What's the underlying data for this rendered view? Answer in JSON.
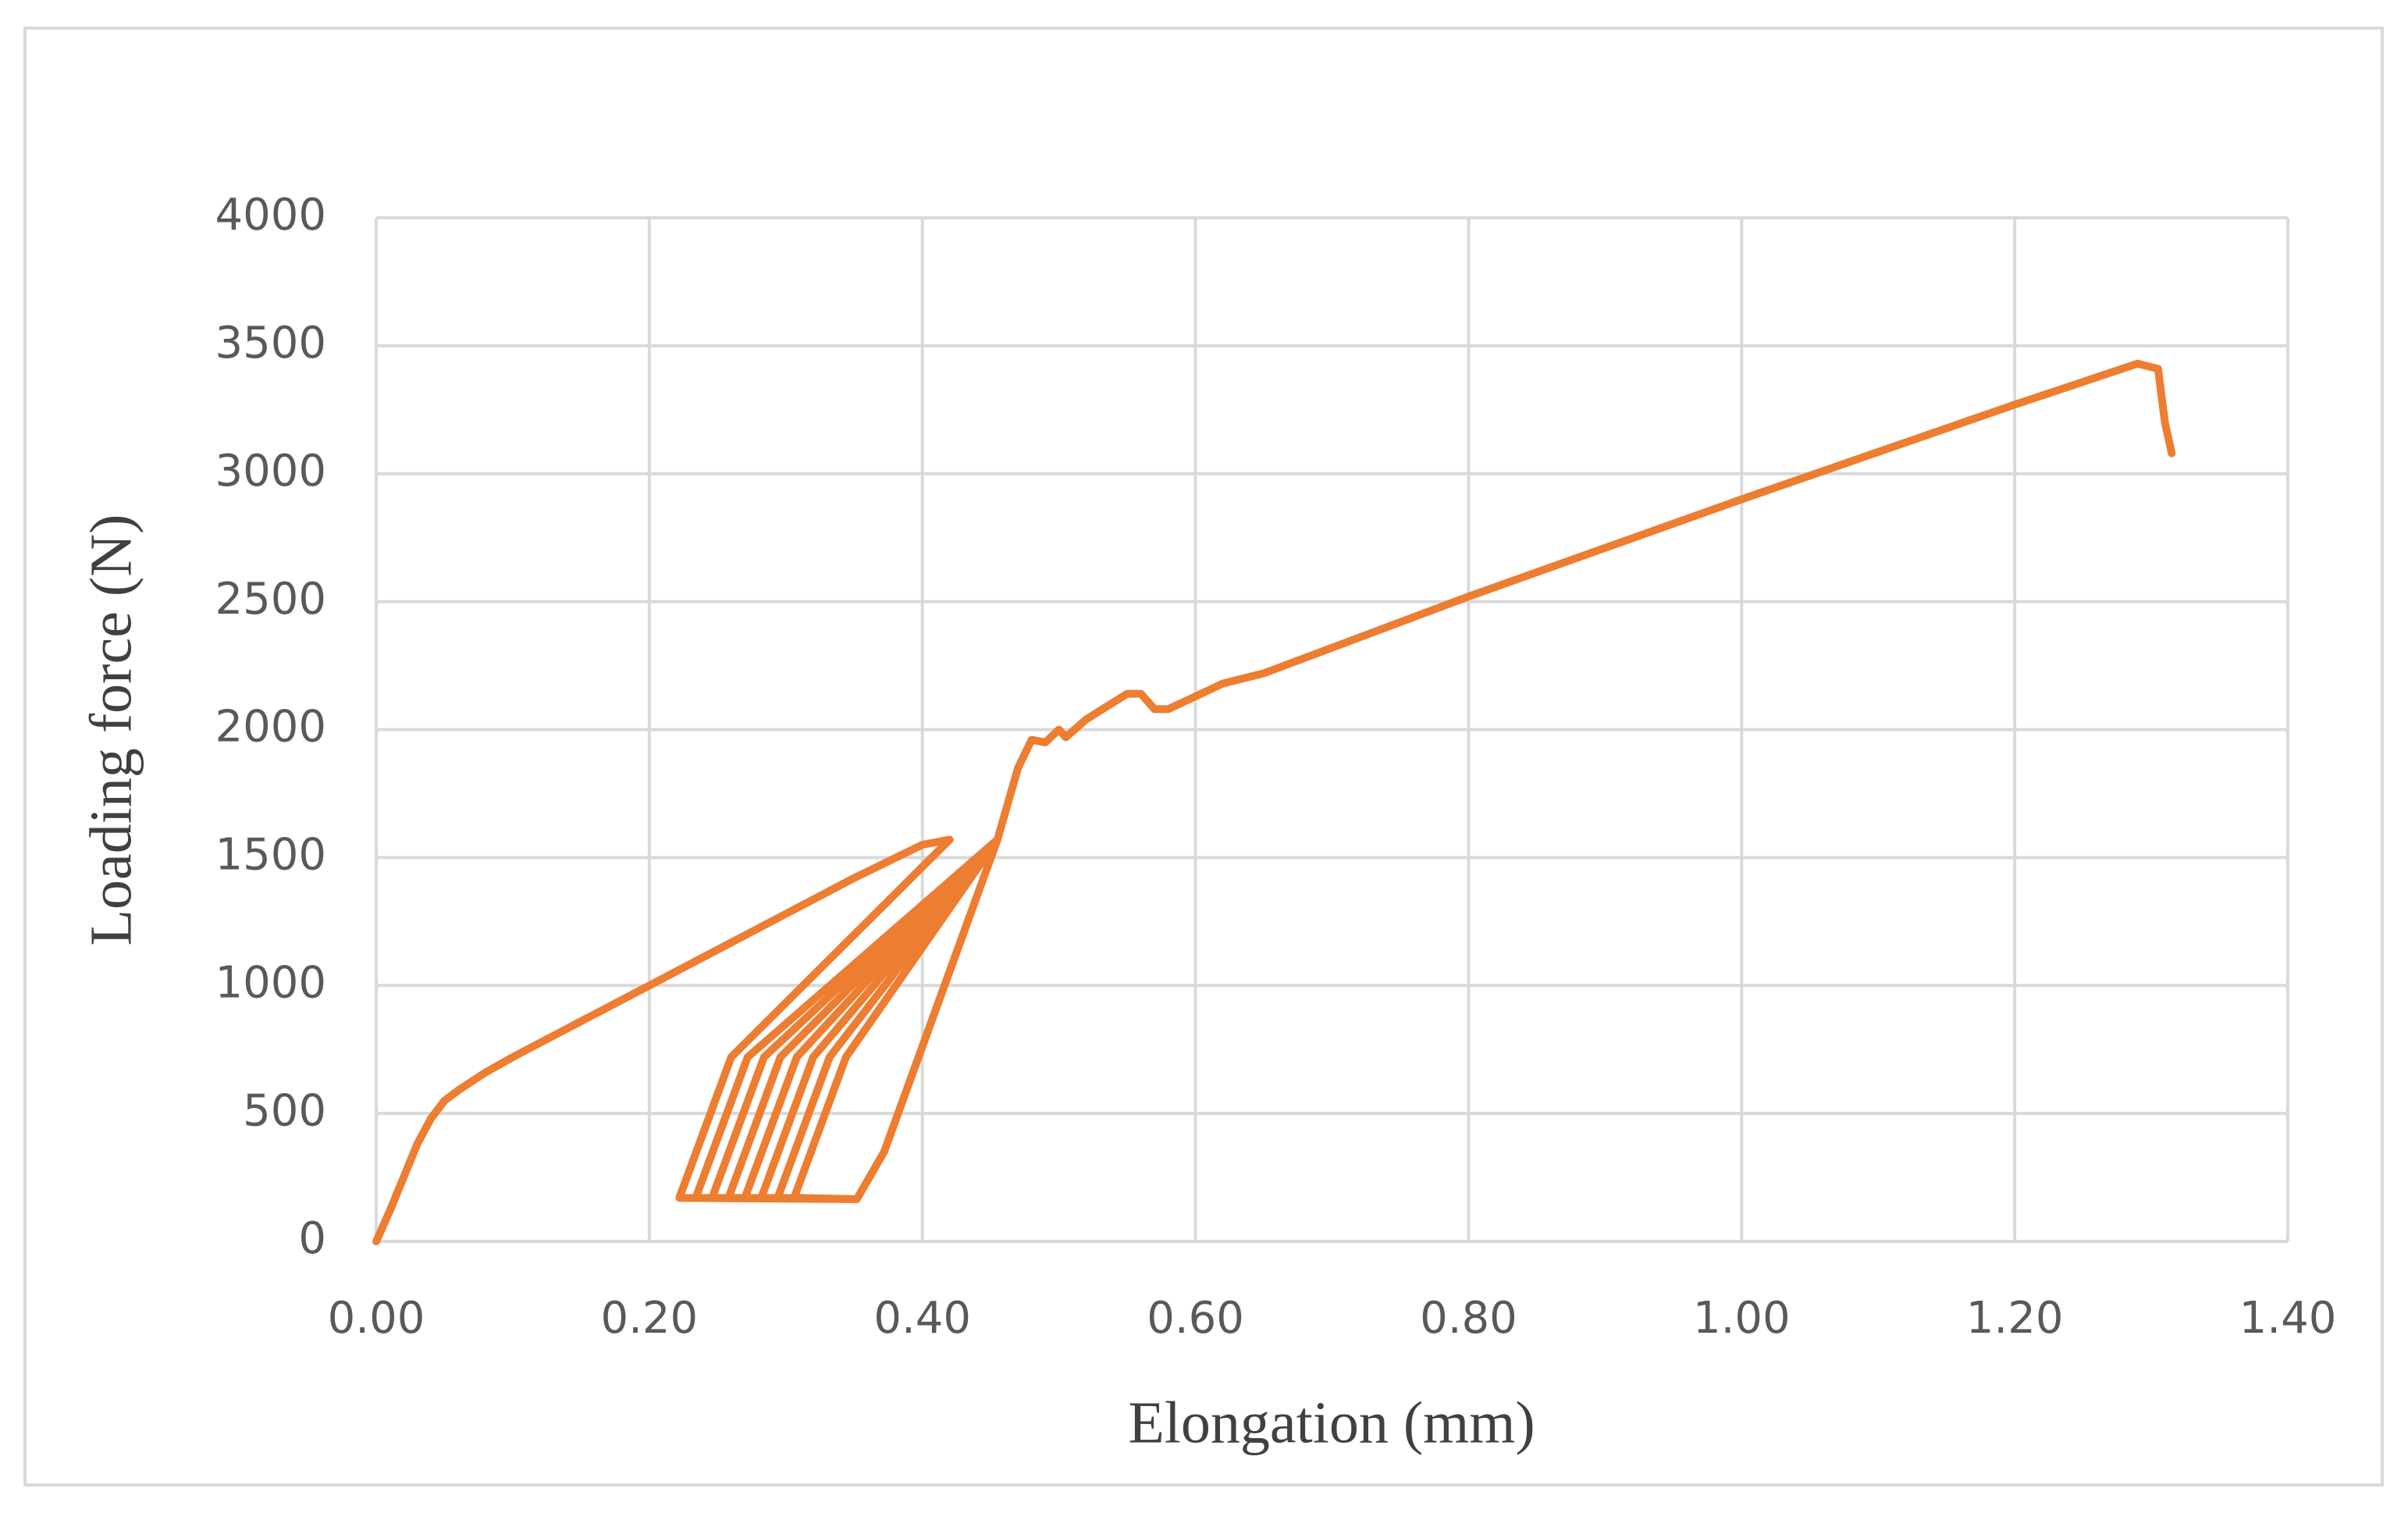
{
  "chart_data": {
    "type": "line",
    "xlabel": "Elongation (mm)",
    "ylabel": "Loading force (N)",
    "color": "#ed7d31",
    "grid": true,
    "xlim": [
      0,
      1.4
    ],
    "xticks": [
      {
        "value": 0,
        "label": "0.00"
      },
      {
        "value": 0.2,
        "label": "0.20"
      },
      {
        "value": 0.4,
        "label": "0.40"
      },
      {
        "value": 0.6,
        "label": "0.60"
      },
      {
        "value": 0.8,
        "label": "0.80"
      },
      {
        "value": 1.0,
        "label": "1.00"
      },
      {
        "value": 1.2,
        "label": "1.20"
      },
      {
        "value": 1.4,
        "label": "1.40"
      }
    ],
    "ylim": [
      0,
      4000
    ],
    "yticks": [
      0,
      500,
      1000,
      1500,
      2000,
      2500,
      3000,
      3500,
      4000
    ],
    "x": [
      0,
      0.01,
      0.02,
      0.03,
      0.04,
      0.05,
      0.06,
      0.08,
      0.1,
      0.15,
      0.2,
      0.25,
      0.3,
      0.35,
      0.4,
      0.42,
      0.26,
      0.222,
      0.352,
      0.372,
      0.455,
      0.272,
      0.234,
      0.352,
      0.372,
      0.455,
      0.284,
      0.246,
      0.352,
      0.372,
      0.455,
      0.296,
      0.258,
      0.352,
      0.372,
      0.455,
      0.308,
      0.27,
      0.352,
      0.372,
      0.455,
      0.32,
      0.282,
      0.352,
      0.372,
      0.455,
      0.332,
      0.294,
      0.352,
      0.372,
      0.455,
      0.344,
      0.306,
      0.352,
      0.372,
      0.455,
      0.47,
      0.48,
      0.49,
      0.5,
      0.505,
      0.52,
      0.55,
      0.56,
      0.57,
      0.58,
      0.62,
      0.65,
      0.8,
      1.0,
      1.2,
      1.29,
      1.305,
      1.31,
      1.315
    ],
    "values": [
      0,
      120,
      250,
      380,
      480,
      550,
      590,
      660,
      720,
      860,
      1000,
      1140,
      1280,
      1420,
      1550,
      1570,
      720,
      170,
      165,
      350,
      1570,
      720,
      170,
      165,
      350,
      1570,
      720,
      170,
      165,
      350,
      1570,
      720,
      170,
      165,
      350,
      1570,
      720,
      170,
      165,
      350,
      1570,
      720,
      170,
      165,
      350,
      1570,
      720,
      170,
      165,
      350,
      1570,
      720,
      170,
      165,
      350,
      1570,
      1850,
      1960,
      1950,
      2000,
      1970,
      2040,
      2140,
      2140,
      2080,
      2080,
      2180,
      2220,
      2520,
      2900,
      3270,
      3430,
      3410,
      3200,
      3080
    ]
  }
}
